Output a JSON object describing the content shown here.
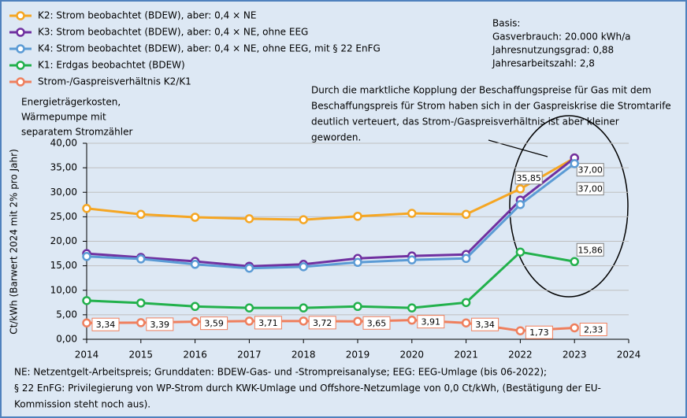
{
  "chart_data": {
    "type": "line",
    "y_label": "Ct/kWh (Barwert 2024 mit 2% pro Jahr)",
    "heading": [
      "Energieträgerkosten,",
      "Wärmepumpe mit",
      "separatem Stromzähler"
    ],
    "basis": [
      "Basis:",
      "Gasverbrauch: 20.000 kWh/a",
      "Jahresnutzungsgrad: 0,88",
      "Jahresarbeitszahl: 2,8"
    ],
    "annotation": [
      "Durch die marktliche Kopplung der Beschaffungspreise für Gas mit dem",
      "Beschaffungspreis für Strom haben sich in der Gaspreiskrise die Stromtarife",
      "deutlich verteuert, das Strom-/Gaspreisverhältnis ist aber kleiner",
      "geworden."
    ],
    "footnote": [
      "NE: Netzentgelt-Arbeitspreis; Grunddaten: BDEW-Gas- und -Strompreisanalyse; EEG: EEG-Umlage (bis 06-2022);",
      "§ 22 EnFG: Privilegierung von WP-Strom durch KWK-Umlage und Offshore-Netzumlage von 0,0 Ct/kWh, (Bestätigung der EU-",
      "Kommission steht noch aus)."
    ],
    "x": [
      2014,
      2015,
      2016,
      2017,
      2018,
      2019,
      2020,
      2021,
      2022,
      2023
    ],
    "xlim": [
      2014,
      2024
    ],
    "xticks": [
      2014,
      2015,
      2016,
      2017,
      2018,
      2019,
      2020,
      2021,
      2022,
      2023,
      2024
    ],
    "ylim": [
      0,
      40
    ],
    "yticks": [
      {
        "value": 0,
        "label": "0,00"
      },
      {
        "value": 5,
        "label": "5,00"
      },
      {
        "value": 10,
        "label": "10,00"
      },
      {
        "value": 15,
        "label": "15,00"
      },
      {
        "value": 20,
        "label": "20,00"
      },
      {
        "value": 25,
        "label": "25,00"
      },
      {
        "value": 30,
        "label": "30,00"
      },
      {
        "value": 35,
        "label": "35,00"
      },
      {
        "value": 40,
        "label": "40,00"
      }
    ],
    "grid": true,
    "series": [
      {
        "name": "K2: Strom beobachtet (BDEW), aber: 0,4 × NE",
        "color": "#f5a623",
        "values": [
          26.7,
          25.5,
          24.9,
          24.6,
          24.4,
          25.1,
          25.7,
          25.5,
          30.7,
          37.0
        ],
        "value_labels": [
          null,
          null,
          null,
          null,
          null,
          null,
          null,
          null,
          null,
          "37,00"
        ]
      },
      {
        "name": "K3: Strom beobachtet (BDEW), aber: 0,4 × NE, ohne EEG",
        "color": "#7030a0",
        "values": [
          17.5,
          16.7,
          15.9,
          14.9,
          15.3,
          16.5,
          17.0,
          17.3,
          28.4,
          37.0
        ],
        "value_labels": [
          null,
          null,
          null,
          null,
          null,
          null,
          null,
          null,
          null,
          "37,00"
        ]
      },
      {
        "name": "K4: Strom beobachtet (BDEW), aber: 0,4 × NE, ohne EEG, mit § 22 EnFG",
        "color": "#5b9bd5",
        "values": [
          16.9,
          16.4,
          15.3,
          14.5,
          14.8,
          15.7,
          16.2,
          16.5,
          27.5,
          35.85
        ],
        "value_labels": [
          null,
          null,
          null,
          null,
          null,
          null,
          null,
          null,
          null,
          "35,85"
        ]
      },
      {
        "name": "K1: Erdgas beobachtet (BDEW)",
        "color": "#22b14c",
        "values": [
          7.9,
          7.4,
          6.7,
          6.4,
          6.4,
          6.7,
          6.4,
          7.5,
          17.8,
          15.86
        ],
        "value_labels": [
          null,
          null,
          null,
          null,
          null,
          null,
          null,
          null,
          null,
          "15,86"
        ]
      },
      {
        "name": "Strom-/Gaspreisverhältnis K2/K1",
        "color": "#ef7f5d",
        "values": [
          3.34,
          3.39,
          3.59,
          3.71,
          3.72,
          3.65,
          3.91,
          3.34,
          1.73,
          2.33
        ],
        "value_labels": [
          "3,34",
          "3,39",
          "3,59",
          "3,71",
          "3,72",
          "3,65",
          "3,91",
          "3,34",
          "1,73",
          "2,33"
        ]
      }
    ]
  }
}
